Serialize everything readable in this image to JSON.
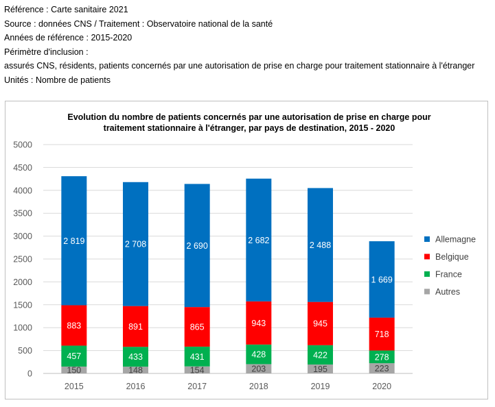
{
  "header": {
    "reference": "Référence : Carte sanitaire 2021",
    "source": "Source : données CNS / Traitement : Observatoire national de la santé",
    "years": "Années de référence : 2015-2020",
    "perimeter_label": "Périmètre d'inclusion :",
    "perimeter_value": "assurés CNS, résidents, patients concernés par une autorisation de prise en charge pour traitement stationnaire à l'étranger",
    "units": "Unités : Nombre de patients"
  },
  "chart_data": {
    "type": "bar",
    "stacked": true,
    "title_line1": "Evolution du nombre de patients concernés par une autorisation de prise en charge pour",
    "title_line2": "traitement stationnaire à l'étranger, par pays de destination, 2015 - 2020",
    "categories": [
      "2015",
      "2016",
      "2017",
      "2018",
      "2019",
      "2020"
    ],
    "series": [
      {
        "name": "Autres",
        "color": "#a6a6a6",
        "values": [
          150,
          148,
          154,
          203,
          195,
          223
        ]
      },
      {
        "name": "France",
        "color": "#00b050",
        "values": [
          457,
          433,
          431,
          428,
          422,
          278
        ]
      },
      {
        "name": "Belgique",
        "color": "#ff0000",
        "values": [
          883,
          891,
          865,
          943,
          945,
          718
        ]
      },
      {
        "name": "Allemagne",
        "color": "#0070c0",
        "values": [
          2819,
          2708,
          2690,
          2682,
          2488,
          1669
        ]
      }
    ],
    "data_labels": {
      "Autres": [
        "150",
        "148",
        "154",
        "203",
        "195",
        "223"
      ],
      "France": [
        "457",
        "433",
        "431",
        "428",
        "422",
        "278"
      ],
      "Belgique": [
        "883",
        "891",
        "865",
        "943",
        "945",
        "718"
      ],
      "Allemagne": [
        "2 819",
        "2 708",
        "2 690",
        "2 682",
        "2 488",
        "1 669"
      ]
    },
    "legend_order": [
      "Allemagne",
      "Belgique",
      "France",
      "Autres"
    ],
    "ylim": [
      0,
      5000
    ],
    "yticks": [
      "0",
      "500",
      "1000",
      "1500",
      "2000",
      "2500",
      "3000",
      "3500",
      "4000",
      "4500",
      "5000"
    ],
    "grid": true,
    "legend_position": "right",
    "xlabel": "",
    "ylabel": ""
  }
}
